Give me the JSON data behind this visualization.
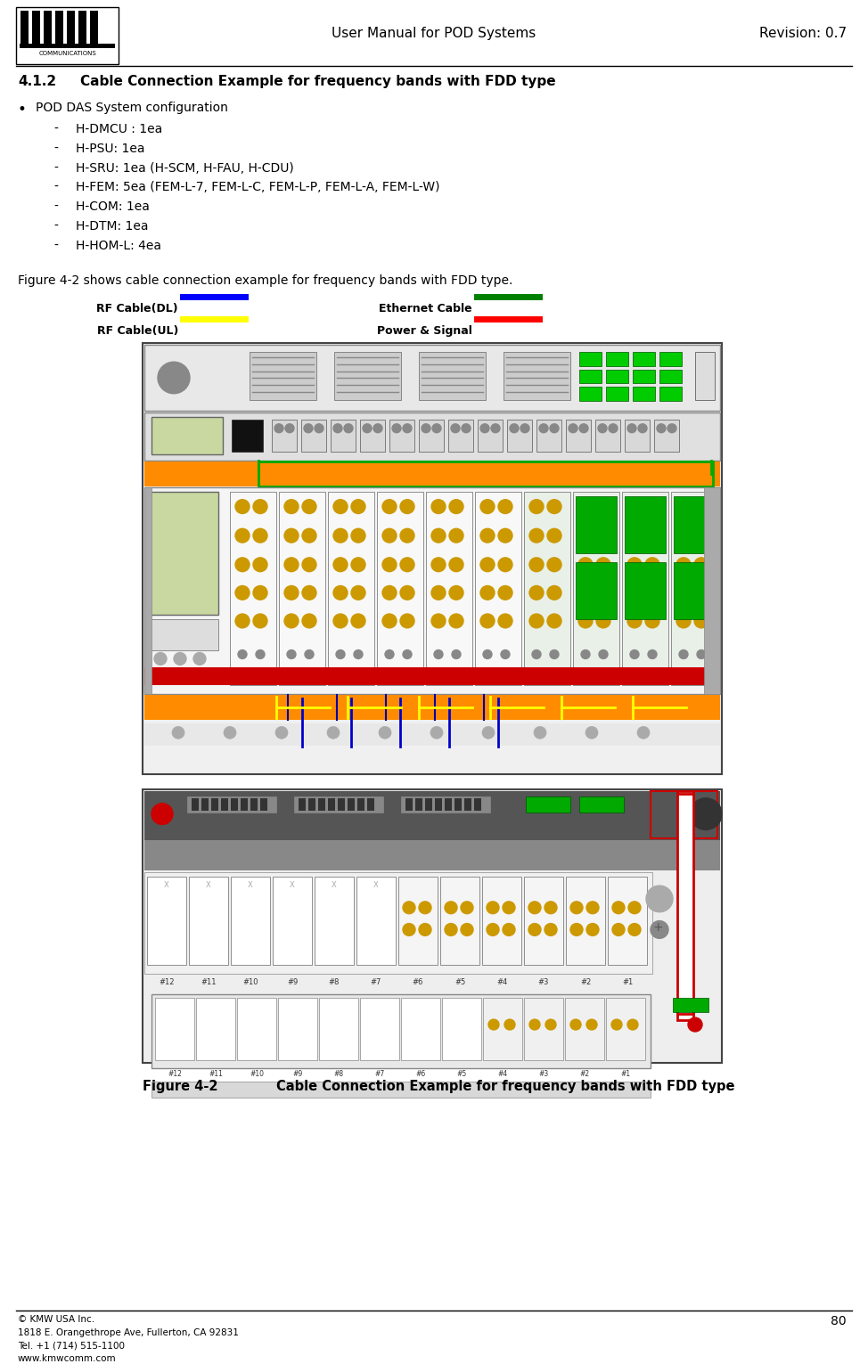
{
  "page_width": 9.74,
  "page_height": 15.4,
  "bg_color": "#ffffff",
  "header": {
    "title": "User Manual for POD Systems",
    "revision": "Revision: 0.7"
  },
  "footer": {
    "copyright": "© KMW USA Inc.\n1818 E. Orangethrope Ave, Fullerton, CA 92831\nTel. +1 (714) 515-1100\nwww.kmwcomm.com",
    "page_number": "80"
  },
  "section_title_num": "4.1.2",
  "section_title_text": "Cable Connection Example for frequency bands with FDD type",
  "bullet_title": "POD DAS System configuration",
  "bullet_items": [
    "H-DMCU : 1ea",
    "H-PSU: 1ea",
    "H-SRU: 1ea (H-SCM, H-FAU, H-CDU)",
    "H-FEM: 5ea (FEM-L-7, FEM-L-C, FEM-L-P, FEM-L-A, FEM-L-W)",
    "H-COM: 1ea",
    "H-DTM: 1ea",
    "H-HOM-L: 4ea"
  ],
  "figure_intro": "Figure 4-2 shows cable connection example for frequency bands with FDD type.",
  "legend": [
    {
      "label": "RF Cable(DL)",
      "color": "#0000FF"
    },
    {
      "label": "Ethernet Cable",
      "color": "#008000"
    },
    {
      "label": "RF Cable(UL)",
      "color": "#FFFF00"
    },
    {
      "label": "Power & Signal",
      "color": "#FF0000"
    }
  ],
  "figure_caption_bold1": "Figure 4-2",
  "figure_caption_bold2": "Cable Connection Example for frequency bands with FDD type"
}
